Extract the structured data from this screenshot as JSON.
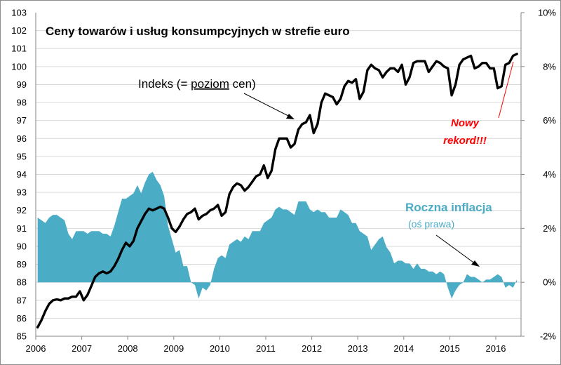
{
  "chart_data": {
    "type": "line",
    "title": "Ceny towarów i usług konsumpcyjnych w strefie euro",
    "x_tick_labels": [
      "2006",
      "2007",
      "2008",
      "2009",
      "2010",
      "2011",
      "2012",
      "2013",
      "2014",
      "2015",
      "2016"
    ],
    "y_left": {
      "range": [
        85,
        103
      ],
      "ticks": [
        "85",
        "86",
        "87",
        "88",
        "89",
        "90",
        "91",
        "92",
        "93",
        "94",
        "95",
        "96",
        "97",
        "98",
        "99",
        "100",
        "101",
        "102",
        "103"
      ]
    },
    "y_right": {
      "range": [
        -0.02,
        0.1
      ],
      "ticks": [
        "-2%",
        "0%",
        "2%",
        "4%",
        "6%",
        "8%",
        "10%"
      ]
    },
    "grid": "horizontal",
    "series": [
      {
        "name": "Indeks (= poziom cen)",
        "axis": "left",
        "color": "#000000",
        "start": "2006-01",
        "values": [
          85.5,
          85.9,
          86.4,
          86.8,
          87.0,
          87.05,
          87.0,
          87.1,
          87.1,
          87.2,
          87.2,
          87.5,
          87.0,
          87.3,
          87.8,
          88.3,
          88.5,
          88.6,
          88.5,
          88.6,
          88.9,
          89.3,
          89.8,
          90.2,
          90.0,
          90.3,
          91.0,
          91.4,
          91.8,
          92.1,
          92.0,
          92.1,
          92.2,
          92.1,
          91.6,
          91.0,
          90.8,
          91.1,
          91.5,
          91.8,
          91.9,
          92.1,
          91.5,
          91.7,
          91.8,
          92.0,
          92.1,
          92.3,
          91.7,
          91.9,
          92.9,
          93.3,
          93.5,
          93.4,
          93.1,
          93.3,
          93.6,
          93.9,
          94.0,
          94.5,
          93.8,
          94.2,
          95.4,
          96.0,
          96.0,
          96.0,
          95.5,
          95.7,
          96.5,
          96.8,
          96.9,
          97.3,
          96.3,
          96.8,
          98.0,
          98.5,
          98.4,
          98.3,
          97.9,
          98.2,
          98.9,
          99.2,
          99.1,
          99.3,
          98.2,
          98.6,
          99.8,
          100.1,
          99.9,
          99.8,
          99.4,
          99.7,
          99.9,
          99.9,
          99.7,
          100.1,
          99.0,
          99.4,
          100.2,
          100.3,
          100.3,
          100.3,
          99.7,
          100.0,
          100.3,
          100.2,
          100.0,
          99.9,
          98.4,
          99.0,
          100.1,
          100.4,
          100.5,
          100.6,
          99.9,
          100.0,
          100.2,
          100.2,
          99.9,
          99.9,
          98.8,
          98.9,
          100.1,
          100.2,
          100.6,
          100.7
        ]
      },
      {
        "name": "Roczna inflacja",
        "note": "(oś prawa)",
        "axis": "right",
        "type": "area",
        "color": "#4bacc6",
        "start": "2006-01",
        "values": [
          0.024,
          0.023,
          0.022,
          0.024,
          0.025,
          0.025,
          0.024,
          0.023,
          0.018,
          0.016,
          0.019,
          0.019,
          0.019,
          0.018,
          0.019,
          0.019,
          0.019,
          0.018,
          0.018,
          0.017,
          0.021,
          0.026,
          0.031,
          0.031,
          0.032,
          0.033,
          0.036,
          0.033,
          0.037,
          0.04,
          0.041,
          0.038,
          0.036,
          0.032,
          0.021,
          0.016,
          0.011,
          0.012,
          0.006,
          0.006,
          0.0,
          -0.001,
          -0.006,
          -0.002,
          -0.003,
          -0.001,
          0.005,
          0.009,
          0.01,
          0.009,
          0.014,
          0.015,
          0.016,
          0.015,
          0.017,
          0.016,
          0.019,
          0.019,
          0.019,
          0.022,
          0.023,
          0.024,
          0.027,
          0.028,
          0.027,
          0.027,
          0.026,
          0.025,
          0.03,
          0.03,
          0.03,
          0.027,
          0.026,
          0.027,
          0.026,
          0.026,
          0.024,
          0.024,
          0.024,
          0.027,
          0.026,
          0.025,
          0.022,
          0.022,
          0.019,
          0.018,
          0.017,
          0.012,
          0.014,
          0.016,
          0.017,
          0.013,
          0.011,
          0.007,
          0.008,
          0.008,
          0.007,
          0.007,
          0.005,
          0.007,
          0.005,
          0.005,
          0.004,
          0.004,
          0.003,
          0.004,
          0.003,
          -0.002,
          -0.006,
          -0.003,
          -0.001,
          0.0,
          0.003,
          0.002,
          0.002,
          0.001,
          0.0,
          0.001,
          0.001,
          0.002,
          0.003,
          0.002,
          -0.002,
          -0.001,
          -0.002,
          0.001
        ]
      }
    ],
    "annotations": [
      {
        "text": "Indeks (= poziom cen)",
        "prefix": "Indeks (= ",
        "underlined": "poziom",
        "suffix": " cen)"
      },
      {
        "text": "Nowy rekord!!!",
        "line1": "Nowy",
        "line2": "rekord!!!",
        "color": "#ff0000"
      },
      {
        "text": "Roczna inflacja",
        "sub": "(oś prawa)"
      }
    ]
  }
}
